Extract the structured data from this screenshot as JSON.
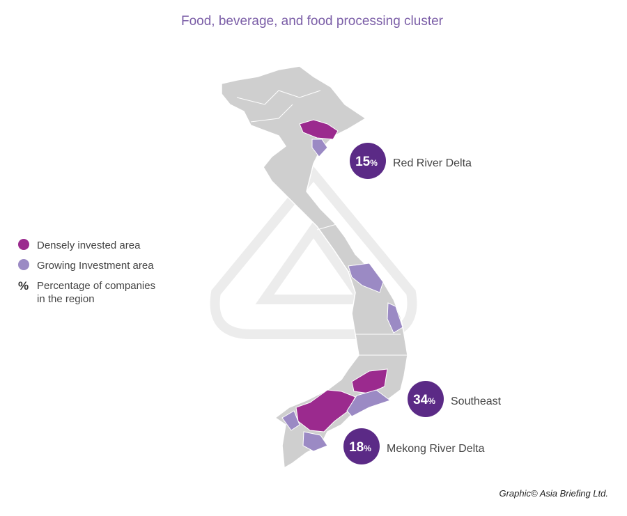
{
  "title": "Food, beverage, and food processing cluster",
  "legend": {
    "items": [
      {
        "label": "Densely invested area",
        "color": "#9b2a8e"
      },
      {
        "label": "Growing Investment area",
        "color": "#9b8ac4"
      },
      {
        "symbol": "%",
        "label": "Percentage of companies",
        "label_line2": "in the region"
      }
    ]
  },
  "regions": [
    {
      "name": "Red River Delta",
      "percent": 15,
      "unit": "%"
    },
    {
      "name": "Southeast",
      "percent": 34,
      "unit": "%"
    },
    {
      "name": "Mekong River Delta",
      "percent": 18,
      "unit": "%"
    }
  ],
  "credit": "Graphic© Asia Briefing Ltd."
}
